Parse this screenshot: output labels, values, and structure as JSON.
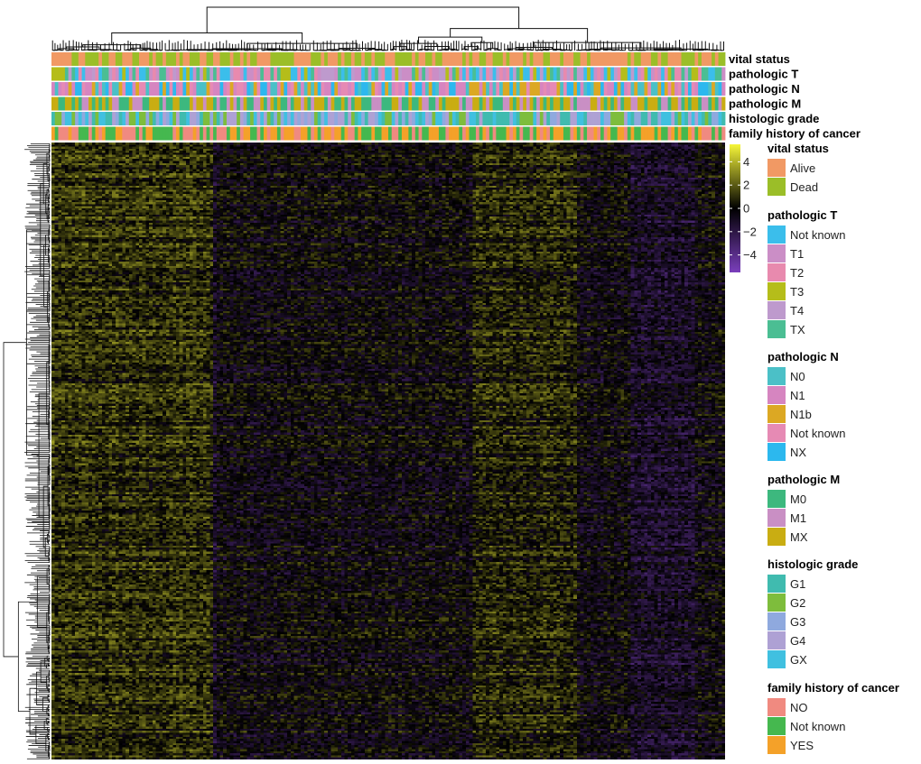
{
  "chart_data": {
    "type": "heatmap",
    "title": "",
    "row_dendrogram": true,
    "column_dendrogram": true,
    "n_columns": 200,
    "n_rows": 300,
    "annotation_tracks": [
      {
        "name": "vital status",
        "levels": [
          "Alive",
          "Dead"
        ],
        "colors": [
          "#F19964",
          "#9BBE28"
        ]
      },
      {
        "name": "pathologic T",
        "levels": [
          "Not known",
          "T1",
          "T2",
          "T3",
          "T4",
          "TX"
        ],
        "colors": [
          "#3BBEEB",
          "#CB8EC6",
          "#E88AAE",
          "#B5BD1A",
          "#BE9ACD",
          "#4BBE93"
        ]
      },
      {
        "name": "pathologic N",
        "levels": [
          "N0",
          "N1",
          "N1b",
          "Not known",
          "NX"
        ],
        "colors": [
          "#4BC0C7",
          "#D685C0",
          "#DCA823",
          "#E68AB4",
          "#2CB8EE"
        ]
      },
      {
        "name": "pathologic M",
        "levels": [
          "M0",
          "M1",
          "MX"
        ],
        "colors": [
          "#3DB87E",
          "#C98FC4",
          "#C9AD12"
        ]
      },
      {
        "name": "histologic grade",
        "levels": [
          "G1",
          "G2",
          "G3",
          "G4",
          "GX"
        ],
        "colors": [
          "#40BBAF",
          "#7EBD3C",
          "#8FA9DE",
          "#AEA1D4",
          "#40C0E0"
        ]
      },
      {
        "name": "family history of cancer",
        "levels": [
          "NO",
          "Not known",
          "YES"
        ],
        "colors": [
          "#F08A80",
          "#45B84F",
          "#F4A129"
        ]
      }
    ],
    "color_scale": {
      "ticks": [
        "4",
        "2",
        "0",
        "−2",
        "−4"
      ],
      "tick_values": [
        4,
        2,
        0,
        -2,
        -4
      ],
      "range": [
        -5.5,
        5.5
      ],
      "low_color": "#7A3FBC",
      "mid_color": "#000000",
      "high_color": "#F6F639"
    },
    "legend_placement": "right"
  }
}
